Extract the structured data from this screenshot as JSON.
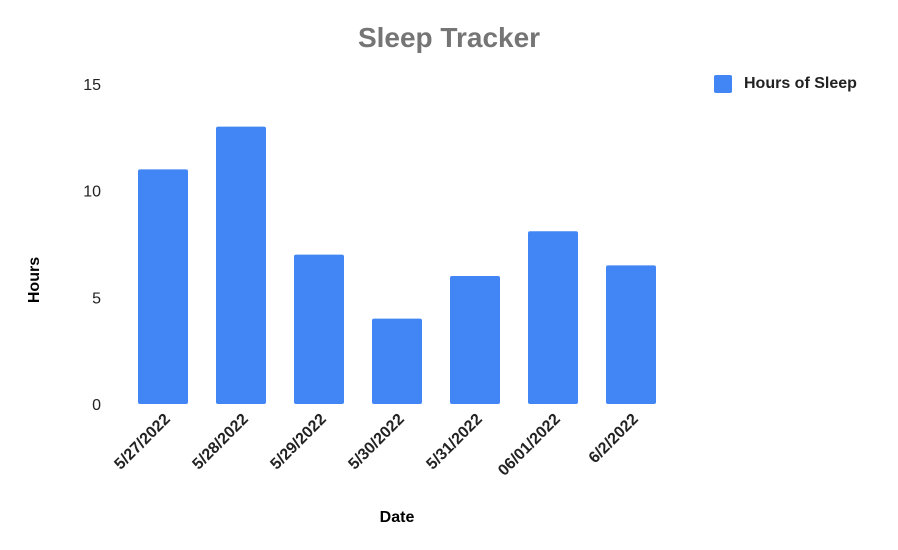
{
  "chart_data": {
    "type": "bar",
    "title": "Sleep Tracker",
    "xlabel": "Date",
    "ylabel": "Hours",
    "categories": [
      "5/27/2022",
      "5/28/2022",
      "5/29/2022",
      "5/30/2022",
      "5/31/2022",
      "06/01/2022",
      "6/2/2022"
    ],
    "series": [
      {
        "name": "Hours of Sleep",
        "color": "#4285f4",
        "values": [
          11,
          13,
          7,
          4,
          6,
          8.1,
          6.5
        ]
      }
    ],
    "ylim": [
      0,
      15
    ],
    "yticks": [
      0,
      5,
      10,
      15
    ],
    "grid": false,
    "legend_position": "top-right"
  }
}
